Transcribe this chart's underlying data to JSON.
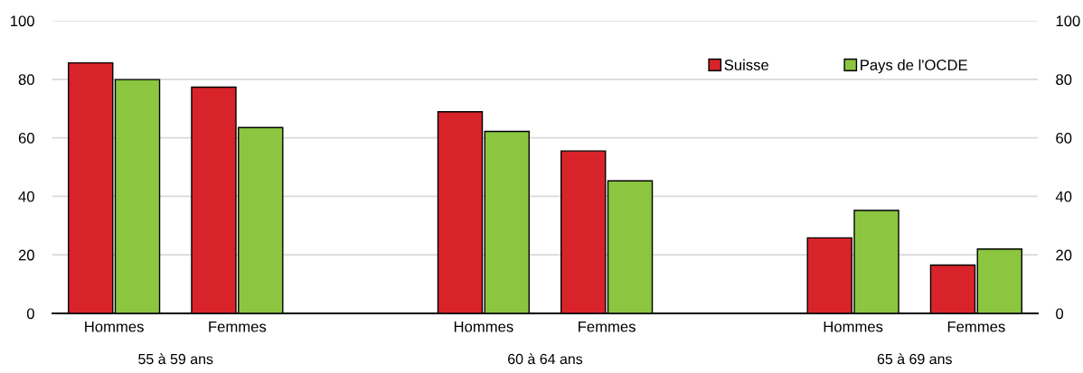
{
  "chart_data": {
    "type": "bar",
    "categories": [
      "Hommes",
      "Femmes",
      null,
      "Hommes",
      "Femmes",
      null,
      "Hommes",
      "Femmes"
    ],
    "series": [
      {
        "name": "Suisse",
        "color": "#d9232a",
        "values": [
          85.6,
          77.3,
          null,
          68.9,
          55.5,
          null,
          25.8,
          16.5
        ]
      },
      {
        "name": "Pays de l'OCDE",
        "color": "#8cc641",
        "values": [
          79.9,
          63.5,
          null,
          62.2,
          45.3,
          null,
          35.2,
          22.0
        ]
      }
    ],
    "annotations": [
      "55 à 59 ans",
      "60 à 64 ans",
      "65 à 69 ans"
    ],
    "ylim": [
      0,
      100
    ],
    "yticks": [
      0,
      20,
      40,
      60,
      80,
      100
    ],
    "y2lim": [
      0,
      100
    ],
    "y2ticks": [
      0,
      20,
      40,
      60,
      80,
      100
    ],
    "grid": "y",
    "legend": "top right"
  }
}
